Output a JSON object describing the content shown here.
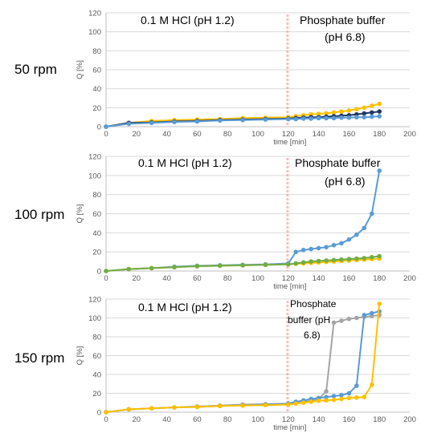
{
  "chart_data": [
    {
      "type": "line",
      "row_label": "50 rpm",
      "annotations": [
        "0.1 M HCl (pH 1.2)",
        "Phosphate buffer",
        "(pH 6.8)"
      ],
      "xlabel": "time [min]",
      "ylabel": "Q [%]",
      "xlim": [
        0,
        200
      ],
      "ylim": [
        0,
        120
      ],
      "x_ticks": [
        0,
        20,
        40,
        60,
        80,
        100,
        120,
        140,
        160,
        180,
        200
      ],
      "y_ticks": [
        0,
        20,
        40,
        60,
        80,
        100,
        120
      ],
      "vline": 120,
      "grid": true,
      "series": [
        {
          "color": "#FFC000",
          "x": [
            0,
            15,
            30,
            45,
            60,
            75,
            90,
            105,
            120,
            125,
            130,
            135,
            140,
            145,
            150,
            155,
            160,
            165,
            170,
            175,
            180
          ],
          "values": [
            0,
            4,
            6,
            7,
            7.5,
            8,
            9,
            9.5,
            10,
            11,
            12,
            13,
            13.5,
            14,
            15,
            16,
            17,
            18.5,
            20,
            22,
            24
          ]
        },
        {
          "color": "#1F3864",
          "x": [
            0,
            15,
            30,
            45,
            60,
            75,
            90,
            105,
            120,
            125,
            130,
            135,
            140,
            145,
            150,
            155,
            160,
            165,
            170,
            175,
            180
          ],
          "values": [
            0,
            4,
            4.5,
            5.5,
            6,
            7,
            7.5,
            8,
            8.5,
            9,
            9.5,
            10,
            10,
            10.5,
            11,
            11.5,
            12,
            13,
            14,
            15,
            16
          ]
        },
        {
          "color": "#5B9BD5",
          "x": [
            0,
            15,
            30,
            45,
            60,
            75,
            90,
            105,
            120,
            125,
            130,
            135,
            140,
            145,
            150,
            155,
            160,
            165,
            170,
            175,
            180
          ],
          "values": [
            0,
            3,
            4,
            5,
            5.5,
            6.5,
            7,
            7.5,
            8,
            8,
            8.5,
            8.5,
            9,
            9,
            9,
            9.5,
            9.5,
            10,
            10,
            10.5,
            11
          ]
        }
      ]
    },
    {
      "type": "line",
      "row_label": "100 rpm",
      "annotations": [
        "0.1 M HCl (pH 1.2)",
        "Phosphate buffer",
        "(pH 6.8)"
      ],
      "xlabel": "time [min]",
      "ylabel": "Q [%]",
      "xlim": [
        0,
        200
      ],
      "ylim": [
        0,
        120
      ],
      "x_ticks": [
        0,
        20,
        40,
        60,
        80,
        100,
        120,
        140,
        160,
        180,
        200
      ],
      "y_ticks": [
        0,
        20,
        40,
        60,
        80,
        100,
        120
      ],
      "vline": 120,
      "grid": true,
      "series": [
        {
          "color": "#5B9BD5",
          "x": [
            0,
            15,
            30,
            45,
            60,
            75,
            90,
            105,
            120,
            125,
            130,
            135,
            140,
            145,
            150,
            155,
            160,
            165,
            170,
            175,
            180
          ],
          "values": [
            0,
            2,
            3,
            4.5,
            5.5,
            6,
            6.5,
            7,
            8,
            20,
            22,
            23,
            24,
            25,
            27,
            29,
            33,
            38,
            45,
            60,
            105
          ]
        },
        {
          "color": "#FFC000",
          "x": [
            0,
            15,
            30,
            45,
            60,
            75,
            90,
            105,
            120,
            125,
            130,
            135,
            140,
            145,
            150,
            155,
            160,
            165,
            170,
            175,
            180
          ],
          "values": [
            0,
            2,
            3,
            4,
            5,
            5.5,
            6,
            6.5,
            7,
            7.5,
            8,
            8.5,
            9,
            9.5,
            10,
            10.5,
            11,
            11.5,
            12,
            12.5,
            13
          ]
        },
        {
          "color": "#70AD47",
          "x": [
            0,
            15,
            30,
            45,
            60,
            75,
            90,
            105,
            120,
            125,
            130,
            135,
            140,
            145,
            150,
            155,
            160,
            165,
            170,
            175,
            180
          ],
          "values": [
            0,
            2,
            3,
            4,
            5,
            5.5,
            6,
            6.5,
            7,
            8,
            9,
            10,
            10.5,
            11,
            11.5,
            12,
            12.5,
            13,
            13.5,
            14.5,
            15.5
          ]
        }
      ]
    },
    {
      "type": "line",
      "row_label": "150 rpm",
      "annotations": [
        "0.1 M HCl (pH 1.2)",
        "Phosphate",
        "buffer (pH",
        "6.8)"
      ],
      "xlabel": "time [min]",
      "ylabel": "Q [%]",
      "xlim": [
        0,
        200
      ],
      "ylim": [
        0,
        120
      ],
      "x_ticks": [
        0,
        20,
        40,
        60,
        80,
        100,
        120,
        140,
        160,
        180,
        200
      ],
      "y_ticks": [
        0,
        20,
        40,
        60,
        80,
        100,
        120
      ],
      "vline": 120,
      "grid": true,
      "series": [
        {
          "color": "#A5A5A5",
          "x": [
            0,
            15,
            30,
            45,
            60,
            75,
            90,
            105,
            120,
            125,
            130,
            135,
            140,
            145,
            150,
            155,
            160,
            165,
            170,
            175,
            180
          ],
          "values": [
            0,
            3,
            4,
            5,
            6,
            7,
            8,
            8.5,
            9,
            10,
            11,
            12,
            14,
            22,
            95,
            97,
            99,
            100,
            101,
            102,
            103
          ]
        },
        {
          "color": "#5B9BD5",
          "x": [
            0,
            15,
            30,
            45,
            60,
            75,
            90,
            105,
            120,
            125,
            130,
            135,
            140,
            145,
            150,
            155,
            160,
            165,
            170,
            175,
            180
          ],
          "values": [
            0,
            3,
            4,
            5,
            5.5,
            6.5,
            7.5,
            8,
            9,
            11,
            12.5,
            14,
            15,
            16,
            17,
            18,
            20,
            28,
            103,
            105,
            107
          ]
        },
        {
          "color": "#FFC000",
          "x": [
            0,
            15,
            30,
            45,
            60,
            75,
            90,
            105,
            120,
            125,
            130,
            135,
            140,
            145,
            150,
            155,
            160,
            165,
            170,
            175,
            180
          ],
          "values": [
            0,
            3,
            4,
            5,
            5.5,
            6.5,
            7,
            7.5,
            8,
            9,
            10,
            11,
            12,
            12.5,
            13,
            14,
            15,
            15.5,
            16,
            29,
            115
          ]
        }
      ]
    }
  ]
}
